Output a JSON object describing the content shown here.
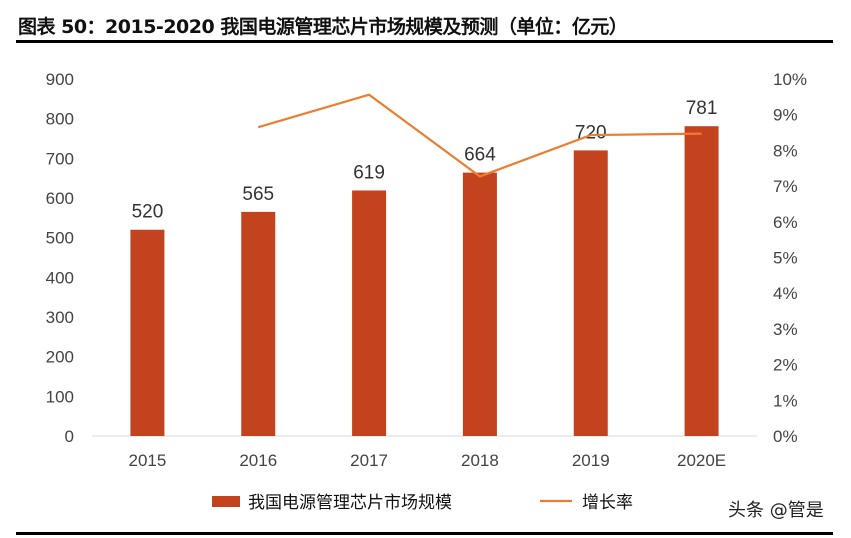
{
  "title": "图表 50：2015-2020 我国电源管理芯片市场规模及预测（单位：亿元）",
  "watermark": "头条 @管是",
  "chart_data": {
    "type": "bar+line",
    "categories": [
      "2015",
      "2016",
      "2017",
      "2018",
      "2019",
      "2020E"
    ],
    "series": [
      {
        "name": "我国电源管理芯片市场规模",
        "type": "bar",
        "axis": "left",
        "values": [
          520,
          565,
          619,
          664,
          720,
          781
        ],
        "color": "#C4431F",
        "data_labels": [
          "520",
          "565",
          "619",
          "664",
          "720",
          "781"
        ]
      },
      {
        "name": "增长率",
        "type": "line",
        "axis": "right",
        "values": [
          null,
          8.65,
          9.56,
          7.27,
          8.43,
          8.47
        ],
        "color": "#ED7D31"
      }
    ],
    "y_left": {
      "ylim": [
        0,
        900
      ],
      "ticks": [
        "0",
        "100",
        "200",
        "300",
        "400",
        "500",
        "600",
        "700",
        "800",
        "900"
      ]
    },
    "y_right": {
      "ylim": [
        0,
        10
      ],
      "ticks": [
        "0%",
        "1%",
        "2%",
        "3%",
        "4%",
        "5%",
        "6%",
        "7%",
        "8%",
        "9%",
        "10%"
      ]
    },
    "grid": false,
    "legend": "bottom"
  }
}
